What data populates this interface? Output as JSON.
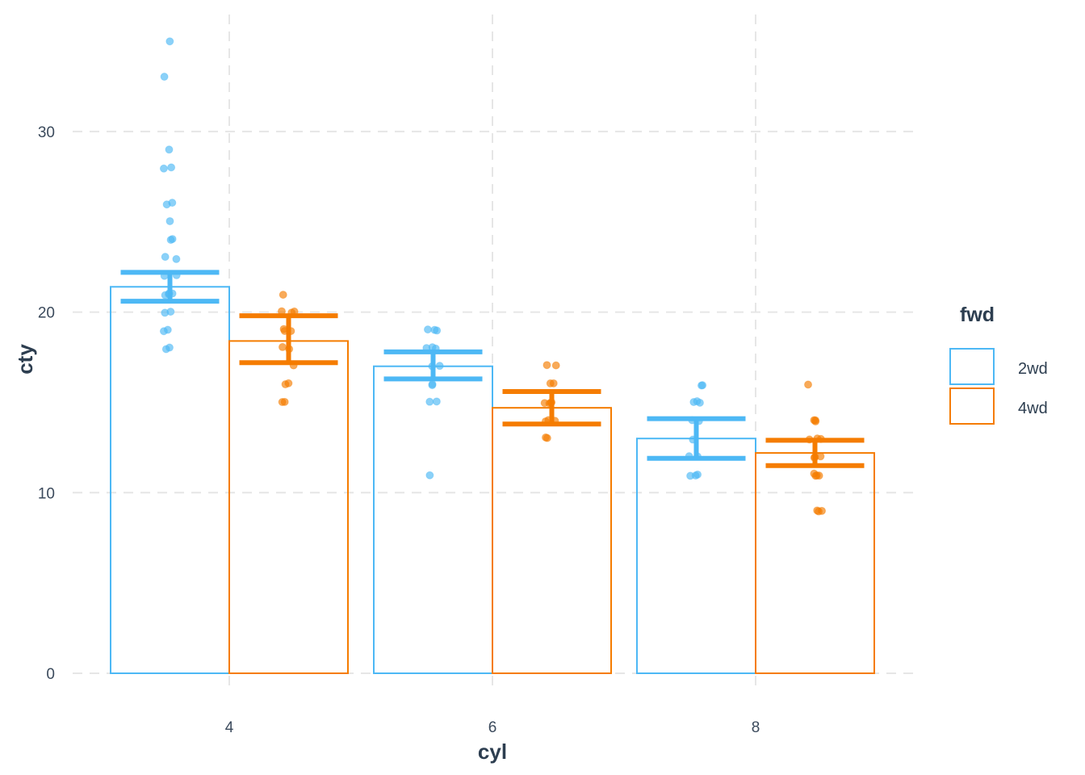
{
  "chart_data": {
    "type": "bar",
    "subtype": "grouped bar with error bars and jittered points",
    "title": "",
    "xlabel": "cyl",
    "ylabel": "cty",
    "categories": [
      "4",
      "6",
      "8"
    ],
    "ylim": [
      0,
      35
    ],
    "yticks": [
      0,
      10,
      20,
      30
    ],
    "xticks": [
      "4",
      "6",
      "8"
    ],
    "grid": true,
    "legend": {
      "title": "fwd",
      "position": "right",
      "entries": [
        "2wd",
        "4wd"
      ]
    },
    "colors": {
      "2wd": "#4DB8F5",
      "4wd": "#F57C00",
      "grid": "#E6E6E6",
      "text": "#2D3E50"
    },
    "series": [
      {
        "name": "2wd",
        "values": [
          21.4,
          17.0,
          13.0
        ],
        "error_low": [
          20.6,
          16.3,
          11.9
        ],
        "error_high": [
          22.2,
          17.8,
          14.1
        ],
        "points": [
          [
            35,
            33,
            29,
            28,
            28,
            26,
            26,
            25,
            24,
            24,
            23,
            23,
            22,
            22,
            21,
            21,
            21,
            21,
            20,
            20,
            19,
            19,
            18,
            18
          ],
          [
            19,
            19,
            19,
            18,
            18,
            18,
            17,
            17,
            16,
            16,
            15,
            15,
            11
          ],
          [
            16,
            16,
            15,
            15,
            15,
            14,
            14,
            13,
            12,
            12,
            11,
            11,
            11
          ]
        ]
      },
      {
        "name": "4wd",
        "values": [
          18.4,
          14.7,
          12.2
        ],
        "error_low": [
          17.2,
          13.8,
          11.5
        ],
        "error_high": [
          19.8,
          15.6,
          12.9
        ],
        "points": [
          [
            21,
            20,
            20,
            20,
            19,
            19,
            19,
            18,
            18,
            17,
            16,
            16,
            15,
            15
          ],
          [
            17,
            17,
            16,
            16,
            15,
            15,
            15,
            15,
            14,
            14,
            14,
            13,
            13
          ],
          [
            16,
            14,
            14,
            14,
            13,
            13,
            13,
            12,
            12,
            12,
            11,
            11,
            11,
            11,
            9,
            9,
            9
          ]
        ]
      }
    ]
  },
  "axes": {
    "x_title": "cyl",
    "y_title": "cty",
    "x_tick_labels": [
      "4",
      "6",
      "8"
    ],
    "y_tick_labels": [
      "0",
      "10",
      "20",
      "30"
    ]
  },
  "legend": {
    "title": "fwd",
    "items": [
      {
        "label": "2wd",
        "color": "#4DB8F5"
      },
      {
        "label": "4wd",
        "color": "#F57C00"
      }
    ]
  }
}
